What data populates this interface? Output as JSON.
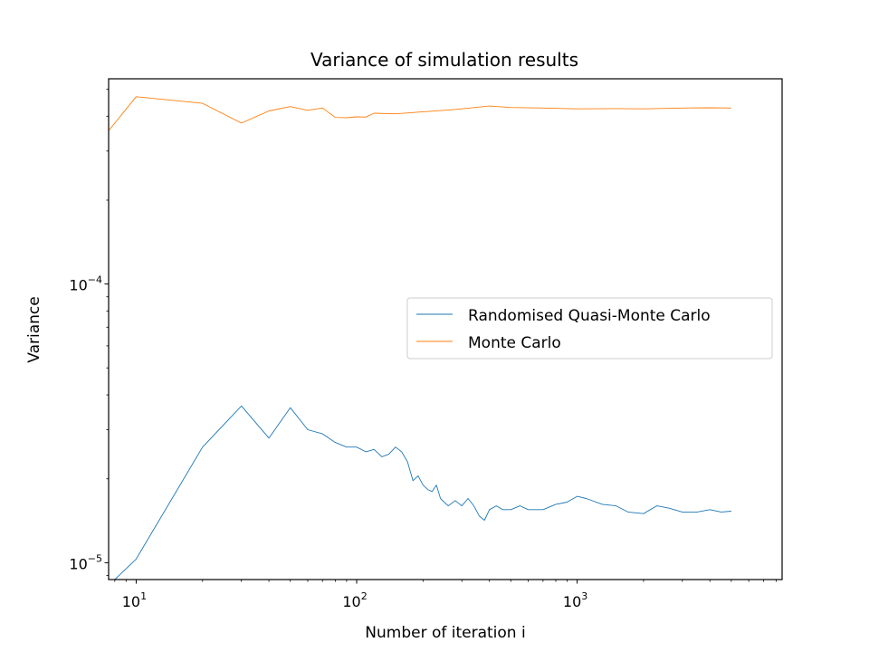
{
  "chart_data": {
    "type": "line",
    "title": "Variance of simulation results",
    "xlabel": "Number of iteration i",
    "ylabel": "Variance",
    "xscale": "log",
    "yscale": "log",
    "xlim": [
      7.5,
      8500
    ],
    "ylim": [
      8.7e-06,
      0.000545
    ],
    "x_ticks": [
      {
        "value": 10,
        "base": "10",
        "exp": "1"
      },
      {
        "value": 100,
        "base": "10",
        "exp": "2"
      },
      {
        "value": 1000,
        "base": "10",
        "exp": "3"
      }
    ],
    "y_ticks": [
      {
        "value": 0.0001,
        "base": "10",
        "exp": "−4"
      },
      {
        "value": 1e-05,
        "base": "10",
        "exp": "−5"
      }
    ],
    "grid": false,
    "legend": "center-right",
    "series": [
      {
        "name": "Randomised Quasi-Monte Carlo",
        "color": "#1f77b4",
        "points": [
          [
            8,
            8.7e-06
          ],
          [
            10,
            1.03e-05
          ],
          [
            20,
            2.6e-05
          ],
          [
            30,
            3.65e-05
          ],
          [
            40,
            2.8e-05
          ],
          [
            50,
            3.6e-05
          ],
          [
            60,
            3e-05
          ],
          [
            70,
            2.9e-05
          ],
          [
            80,
            2.7e-05
          ],
          [
            90,
            2.6e-05
          ],
          [
            100,
            2.6e-05
          ],
          [
            110,
            2.5e-05
          ],
          [
            120,
            2.55e-05
          ],
          [
            130,
            2.4e-05
          ],
          [
            140,
            2.45e-05
          ],
          [
            150,
            2.6e-05
          ],
          [
            160,
            2.5e-05
          ],
          [
            170,
            2.3e-05
          ],
          [
            180,
            1.97e-05
          ],
          [
            190,
            2.05e-05
          ],
          [
            200,
            1.9e-05
          ],
          [
            210,
            1.83e-05
          ],
          [
            220,
            1.8e-05
          ],
          [
            230,
            1.9e-05
          ],
          [
            240,
            1.7e-05
          ],
          [
            260,
            1.6e-05
          ],
          [
            280,
            1.67e-05
          ],
          [
            300,
            1.6e-05
          ],
          [
            320,
            1.7e-05
          ],
          [
            340,
            1.6e-05
          ],
          [
            360,
            1.47e-05
          ],
          [
            380,
            1.42e-05
          ],
          [
            400,
            1.55e-05
          ],
          [
            430,
            1.6e-05
          ],
          [
            460,
            1.55e-05
          ],
          [
            500,
            1.55e-05
          ],
          [
            550,
            1.6e-05
          ],
          [
            600,
            1.55e-05
          ],
          [
            700,
            1.55e-05
          ],
          [
            800,
            1.62e-05
          ],
          [
            900,
            1.65e-05
          ],
          [
            1000,
            1.73e-05
          ],
          [
            1100,
            1.7e-05
          ],
          [
            1300,
            1.62e-05
          ],
          [
            1500,
            1.6e-05
          ],
          [
            1700,
            1.52e-05
          ],
          [
            2000,
            1.5e-05
          ],
          [
            2300,
            1.6e-05
          ],
          [
            2600,
            1.57e-05
          ],
          [
            3000,
            1.52e-05
          ],
          [
            3500,
            1.52e-05
          ],
          [
            4000,
            1.55e-05
          ],
          [
            4500,
            1.52e-05
          ],
          [
            5000,
            1.53e-05
          ]
        ]
      },
      {
        "name": "Monte Carlo",
        "color": "#ff7f0e",
        "points": [
          [
            7.5,
            0.000355
          ],
          [
            10,
            0.00047
          ],
          [
            20,
            0.000445
          ],
          [
            30,
            0.000378
          ],
          [
            40,
            0.000418
          ],
          [
            50,
            0.000433
          ],
          [
            60,
            0.00042
          ],
          [
            70,
            0.000428
          ],
          [
            80,
            0.000396
          ],
          [
            90,
            0.000395
          ],
          [
            100,
            0.000398
          ],
          [
            110,
            0.000397
          ],
          [
            120,
            0.00041
          ],
          [
            150,
            0.000408
          ],
          [
            200,
            0.000415
          ],
          [
            250,
            0.00042
          ],
          [
            300,
            0.000425
          ],
          [
            400,
            0.000435
          ],
          [
            500,
            0.00043
          ],
          [
            700,
            0.000428
          ],
          [
            1000,
            0.000425
          ],
          [
            1500,
            0.000426
          ],
          [
            2000,
            0.000425
          ],
          [
            3000,
            0.000428
          ],
          [
            4000,
            0.000429
          ],
          [
            5000,
            0.000428
          ]
        ]
      }
    ]
  }
}
